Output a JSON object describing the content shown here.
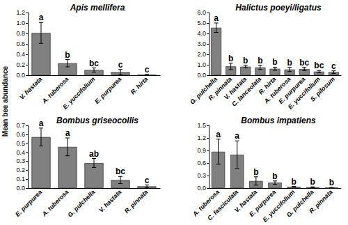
{
  "chart_data": [
    {
      "type": "bar",
      "title": "Apis mellifera",
      "y_label": "Mean bee abundance",
      "categories": [
        "V. hastata",
        "A. tuberosa",
        "E. yuccifolium",
        "E. purpurea",
        "R. hirta"
      ],
      "values": [
        0.81,
        0.23,
        0.1,
        0.06,
        0.01
      ],
      "errors": [
        0.2,
        0.07,
        0.04,
        0.05,
        0.005
      ],
      "letters": [
        "a",
        "b",
        "bc",
        "c",
        "c"
      ],
      "color": "#808080",
      "ylim": [
        0,
        1.2
      ],
      "yticks": [
        {
          "value": 0,
          "label": "0.0"
        },
        0.2,
        0.4,
        0.6,
        0.8,
        {
          "value": 1,
          "label": "1.0"
        },
        1.2
      ],
      "grid": false
    },
    {
      "type": "bar",
      "title": "Halictus poeyi/ligatus",
      "categories": [
        "G. pulchella",
        "R. pinnata",
        "V. hastata",
        "C. lanceolata",
        "R. hirta",
        "A. tuberosa",
        "E. purpurea",
        "E. yuccifolium",
        "S. pilosum"
      ],
      "values": [
        4.55,
        0.85,
        0.82,
        0.75,
        0.62,
        0.55,
        0.6,
        0.35,
        0.3
      ],
      "errors": [
        0.45,
        0.3,
        0.12,
        0.2,
        0.15,
        0.2,
        0.15,
        0.1,
        0.12
      ],
      "letters": [
        "a",
        "b",
        "b",
        "b",
        "b",
        "b",
        "bc",
        "bc",
        "c"
      ],
      "color": "#808080",
      "ylim": [
        0,
        6
      ],
      "yticks": [
        {
          "value": 0,
          "label": "0.0"
        },
        {
          "value": 1,
          "label": "1.0"
        },
        {
          "value": 2,
          "label": "2.0"
        },
        {
          "value": 3,
          "label": "3.0"
        },
        {
          "value": 4,
          "label": "4.0"
        },
        {
          "value": 5,
          "label": "5.0"
        },
        {
          "value": 6,
          "label": "6.0"
        }
      ],
      "grid": false
    },
    {
      "type": "bar",
      "title": "Bombus griseocollis",
      "categories": [
        "E. purpurea",
        "A. tuberosa",
        "G. pulchella",
        "V. hastata",
        "R. pinnata"
      ],
      "values": [
        0.57,
        0.46,
        0.28,
        0.09,
        0.02
      ],
      "errors": [
        0.1,
        0.1,
        0.05,
        0.04,
        0.015
      ],
      "letters": [
        "a",
        "a",
        "ab",
        "bc",
        "c"
      ],
      "color": "#808080",
      "ylim": [
        0,
        0.7
      ],
      "yticks": [
        {
          "value": 0,
          "label": "0.0"
        },
        0.1,
        0.2,
        0.3,
        0.4,
        0.5,
        0.6,
        0.7
      ],
      "grid": false
    },
    {
      "type": "bar",
      "title": "Bombus impatiens",
      "categories": [
        "A. tuberosa",
        "C. fasciculata",
        "V. hastata",
        "E. purpurea",
        "E. yuccifolium",
        "G. pulchella",
        "R. pinnata"
      ],
      "values": [
        0.87,
        0.8,
        0.17,
        0.13,
        0.03,
        0.02,
        0.01
      ],
      "errors": [
        0.3,
        0.33,
        0.1,
        0.04,
        0.01,
        0.01,
        0.005
      ],
      "letters": [
        "a",
        "a",
        "b",
        "b",
        "b",
        "b",
        "b"
      ],
      "color": "#808080",
      "ylim": [
        0,
        1.5
      ],
      "yticks": [
        {
          "value": 0,
          "label": "0.0"
        },
        0.3,
        0.6,
        0.9,
        1.2,
        1.5
      ],
      "grid": false
    }
  ]
}
